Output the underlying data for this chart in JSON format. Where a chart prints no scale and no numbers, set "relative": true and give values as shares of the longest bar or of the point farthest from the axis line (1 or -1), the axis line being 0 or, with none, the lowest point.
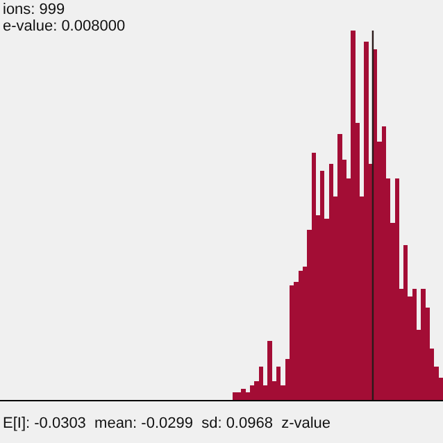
{
  "chart_data": {
    "type": "bar",
    "relative": true,
    "categories": [
      null,
      null,
      null,
      null,
      null,
      null,
      null,
      null,
      null,
      null,
      null,
      null,
      null,
      null,
      null,
      null,
      null,
      null,
      null,
      null,
      null,
      null,
      null,
      null,
      null,
      null,
      null,
      null,
      null,
      null,
      null,
      null,
      null,
      null,
      null,
      null,
      null,
      null,
      null,
      null,
      null,
      null,
      null,
      null,
      null,
      null,
      null,
      null
    ],
    "values": [
      0.02,
      0.02,
      0.03,
      0.02,
      0.04,
      0.05,
      0.09,
      0.04,
      0.16,
      0.05,
      0.09,
      0.04,
      0.11,
      0.31,
      0.32,
      0.35,
      0.36,
      0.46,
      0.67,
      0.5,
      0.62,
      0.49,
      0.64,
      0.55,
      0.72,
      0.65,
      0.6,
      1.0,
      0.75,
      0.55,
      0.97,
      0.64,
      0.95,
      0.7,
      0.74,
      0.6,
      0.48,
      0.6,
      0.3,
      0.42,
      0.28,
      0.3,
      0.19,
      0.3,
      0.25,
      0.14,
      0.09,
      0.06
    ],
    "color": "#a30d35",
    "annotations": [
      "ions: 999",
      "e-value: 0.008000",
      "E[I]: -0.0303  mean: -0.0299  sd: 0.0968  z-value"
    ]
  }
}
